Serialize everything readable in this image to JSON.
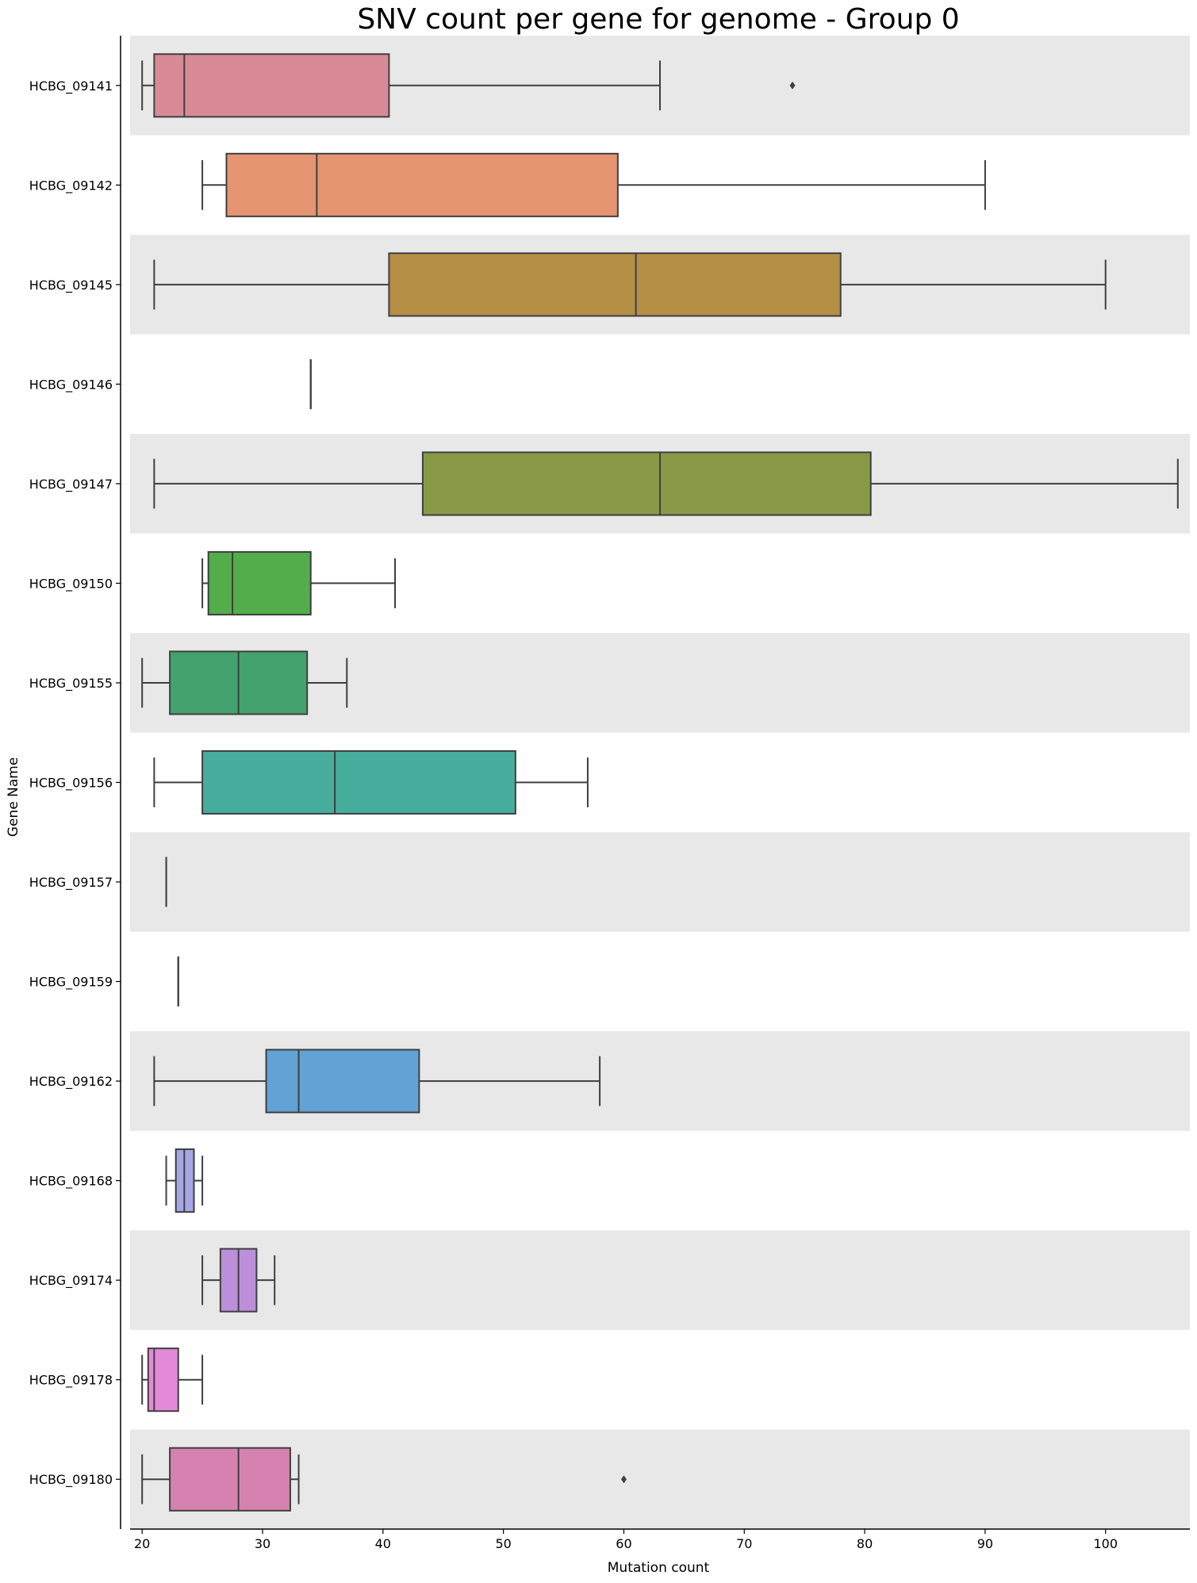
{
  "chart_data": {
    "type": "box",
    "orientation": "horizontal",
    "title": "SNV count per gene for genome - Group 0",
    "xlabel": "Mutation count",
    "ylabel": "Gene Name",
    "xlim": [
      19,
      107
    ],
    "xticks": [
      20,
      30,
      40,
      50,
      60,
      70,
      80,
      90,
      100
    ],
    "grid": false,
    "row_banding": true,
    "categories": [
      "HCBG_09141",
      "HCBG_09142",
      "HCBG_09145",
      "HCBG_09146",
      "HCBG_09147",
      "HCBG_09150",
      "HCBG_09155",
      "HCBG_09156",
      "HCBG_09157",
      "HCBG_09159",
      "HCBG_09162",
      "HCBG_09168",
      "HCBG_09174",
      "HCBG_09178",
      "HCBG_09180"
    ],
    "boxes": [
      {
        "category": "HCBG_09141",
        "whisker_low": 20,
        "q1": 21,
        "median": 23.5,
        "q3": 40.5,
        "whisker_high": 63,
        "outliers": [
          74
        ],
        "color": "#d98a97"
      },
      {
        "category": "HCBG_09142",
        "whisker_low": 25,
        "q1": 27,
        "median": 34.5,
        "q3": 59.5,
        "whisker_high": 90,
        "outliers": [],
        "color": "#e59572"
      },
      {
        "category": "HCBG_09145",
        "whisker_low": 21,
        "q1": 40.5,
        "median": 61,
        "q3": 78,
        "whisker_high": 100,
        "outliers": [],
        "color": "#b68f46"
      },
      {
        "category": "HCBG_09146",
        "whisker_low": 34,
        "q1": 34,
        "median": 34,
        "q3": 34,
        "whisker_high": 34,
        "outliers": [],
        "color": "#a0a040"
      },
      {
        "category": "HCBG_09147",
        "whisker_low": 21,
        "q1": 43.3,
        "median": 63,
        "q3": 80.5,
        "whisker_high": 106,
        "outliers": [],
        "color": "#899a46"
      },
      {
        "category": "HCBG_09150",
        "whisker_low": 25,
        "q1": 25.5,
        "median": 27.5,
        "q3": 34,
        "whisker_high": 41,
        "outliers": [],
        "color": "#52ad4a"
      },
      {
        "category": "HCBG_09155",
        "whisker_low": 20,
        "q1": 22.3,
        "median": 28,
        "q3": 33.7,
        "whisker_high": 37,
        "outliers": [],
        "color": "#44a26f"
      },
      {
        "category": "HCBG_09156",
        "whisker_low": 21,
        "q1": 25,
        "median": 36,
        "q3": 51,
        "whisker_high": 57,
        "outliers": [],
        "color": "#47ad9d"
      },
      {
        "category": "HCBG_09157",
        "whisker_low": 22,
        "q1": 22,
        "median": 22,
        "q3": 22,
        "whisker_high": 22,
        "outliers": [],
        "color": "#45a6b0"
      },
      {
        "category": "HCBG_09159",
        "whisker_low": 23,
        "q1": 23,
        "median": 23,
        "q3": 23,
        "whisker_high": 23,
        "outliers": [],
        "color": "#4ba3c3"
      },
      {
        "category": "HCBG_09162",
        "whisker_low": 21,
        "q1": 30.3,
        "median": 33,
        "q3": 43,
        "whisker_high": 58,
        "outliers": [],
        "color": "#62a2d4"
      },
      {
        "category": "HCBG_09168",
        "whisker_low": 22,
        "q1": 22.8,
        "median": 23.5,
        "q3": 24.3,
        "whisker_high": 25,
        "outliers": [],
        "color": "#a6a7e6"
      },
      {
        "category": "HCBG_09174",
        "whisker_low": 25,
        "q1": 26.5,
        "median": 28,
        "q3": 29.5,
        "whisker_high": 31,
        "outliers": [],
        "color": "#bd8fdb"
      },
      {
        "category": "HCBG_09178",
        "whisker_low": 20,
        "q1": 20.5,
        "median": 21,
        "q3": 23,
        "whisker_high": 25,
        "outliers": [],
        "color": "#e28ad9"
      },
      {
        "category": "HCBG_09180",
        "whisker_low": 20,
        "q1": 22.3,
        "median": 28,
        "q3": 32.3,
        "whisker_high": 33,
        "outliers": [
          60
        ],
        "color": "#d582b0"
      }
    ],
    "band_color": "#e8e8e8",
    "line_color": "#3f3f3f"
  }
}
